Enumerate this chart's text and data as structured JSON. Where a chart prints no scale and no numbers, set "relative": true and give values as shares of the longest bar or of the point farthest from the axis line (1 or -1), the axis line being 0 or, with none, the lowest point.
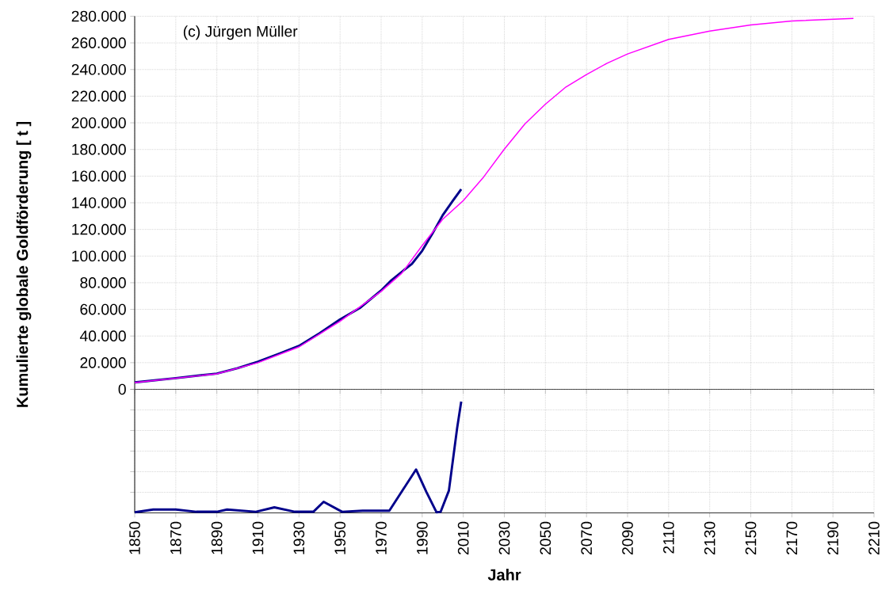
{
  "chart_data": [
    {
      "type": "line",
      "ylabel": "Kumulierte globale Goldförderung [ t ]",
      "annotations": [
        "(c) Jürgen Müller"
      ],
      "xlim": [
        1850,
        2210
      ],
      "xticks": [
        1850,
        1870,
        1890,
        1910,
        1930,
        1950,
        1970,
        1990,
        2010,
        2030,
        2050,
        2070,
        2090,
        2110,
        2130,
        2150,
        2170,
        2190,
        2210
      ],
      "ylim": [
        0,
        280000
      ],
      "yticks": [
        0,
        {
          "value": 20000,
          "label": "20.000"
        },
        {
          "value": 40000,
          "label": "40.000"
        },
        {
          "value": 60000,
          "label": "60.000"
        },
        {
          "value": 80000,
          "label": "80.000"
        },
        {
          "value": 100000,
          "label": "100.000"
        },
        {
          "value": 120000,
          "label": "120.000"
        },
        {
          "value": 140000,
          "label": "140.000"
        },
        {
          "value": 160000,
          "label": "160.000"
        },
        {
          "value": 180000,
          "label": "180.000"
        },
        {
          "value": 200000,
          "label": "200.000"
        },
        {
          "value": 220000,
          "label": "220.000"
        },
        {
          "value": 240000,
          "label": "240.000"
        },
        {
          "value": 260000,
          "label": "260.000"
        },
        {
          "value": 280000,
          "label": "280.000"
        }
      ],
      "grid": true,
      "tick_labels": "y",
      "series": [
        {
          "color": "#00008b",
          "x": [
            1850,
            1870,
            1890,
            1900,
            1910,
            1920,
            1930,
            1940,
            1950,
            1960,
            1970,
            1975,
            1980,
            1985,
            1990,
            1995,
            2000,
            2005,
            2009
          ],
          "values": [
            5200,
            8400,
            11800,
            15800,
            20700,
            26600,
            32600,
            42100,
            52500,
            61400,
            74200,
            81800,
            88100,
            94100,
            104000,
            116900,
            130700,
            141700,
            150200
          ]
        },
        {
          "color": "#ff00ff",
          "x": [
            1850,
            1870,
            1890,
            1910,
            1930,
            1950,
            1970,
            1980,
            1990,
            2000,
            2010,
            2020,
            2030,
            2040,
            2050,
            2060,
            2070,
            2080,
            2090,
            2110,
            2130,
            2150,
            2170,
            2200
          ],
          "values": [
            5000,
            8300,
            11600,
            20000,
            31800,
            51000,
            73500,
            87000,
            107900,
            127700,
            141600,
            159500,
            180300,
            199100,
            214000,
            226900,
            236200,
            244700,
            251700,
            262600,
            268900,
            273500,
            276400,
            278400
          ]
        }
      ]
    },
    {
      "type": "line",
      "relative": true,
      "xlabel": "Jahr",
      "xlim": [
        1850,
        2210
      ],
      "xticks": [
        1850,
        1870,
        1890,
        1910,
        1930,
        1950,
        1970,
        1990,
        2010,
        2030,
        2050,
        2070,
        2090,
        2110,
        2130,
        2150,
        2170,
        2190,
        2210
      ],
      "grid": true,
      "tick_labels": "x",
      "series": [
        {
          "color": "#00008b",
          "x": [
            1850,
            1859,
            1870,
            1880,
            1890,
            1895,
            1909,
            1918,
            1928,
            1937,
            1942,
            1951,
            1961,
            1974,
            1980,
            1987,
            1992,
            1997,
            1999,
            2003,
            2007,
            2009
          ],
          "values": [
            0.005,
            0.03,
            0.03,
            0.01,
            0.01,
            0.03,
            0.01,
            0.05,
            0.01,
            0.01,
            0.1,
            0.01,
            0.02,
            0.02,
            0.19,
            0.39,
            0.19,
            0.005,
            0.01,
            0.2,
            0.76,
            1
          ]
        }
      ]
    }
  ]
}
